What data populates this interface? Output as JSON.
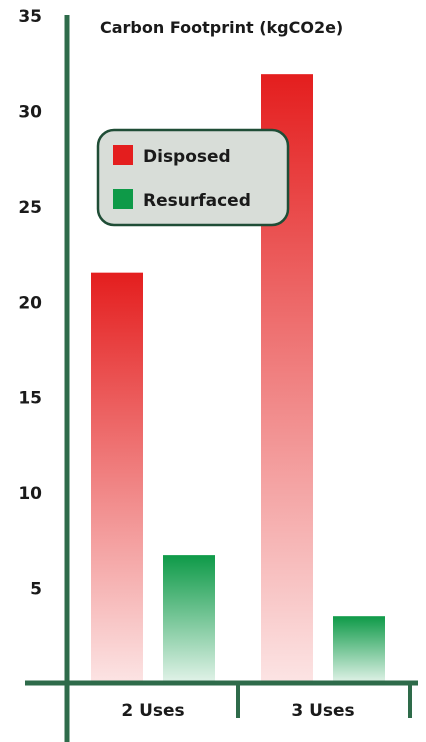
{
  "chart_data": {
    "type": "bar",
    "title": "Carbon Footprint (kgCO2e)",
    "categories": [
      "2 Uses",
      "3 Uses"
    ],
    "series": [
      {
        "name": "Disposed",
        "values": [
          21.5,
          31.9
        ],
        "color": "#e41e1e"
      },
      {
        "name": "Resurfaced",
        "values": [
          6.7,
          3.5
        ],
        "color": "#0e9a48"
      }
    ],
    "ylim": [
      0,
      35
    ],
    "yticks": [
      5,
      10,
      15,
      20,
      25,
      30,
      35
    ],
    "grid": false,
    "legend": "upper-left",
    "axis_color": "#2e6b4a"
  }
}
